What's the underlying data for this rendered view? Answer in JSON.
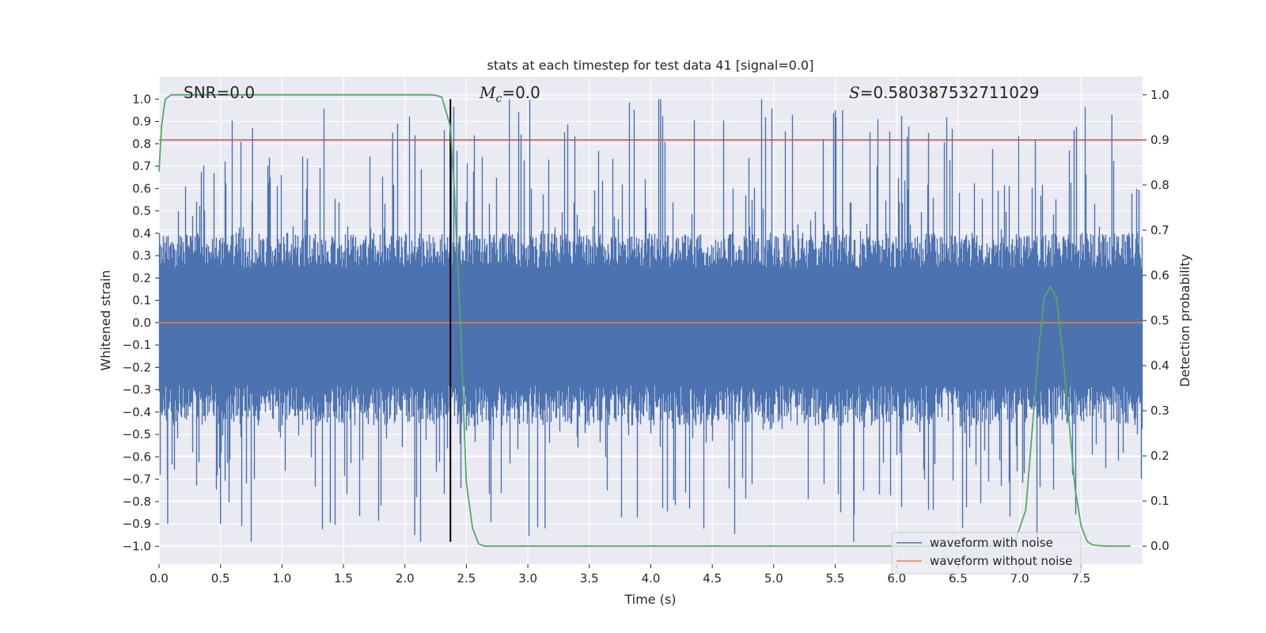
{
  "chart_data": {
    "type": "line",
    "title": "stats at each timestep for test data 41 [signal=0.0]",
    "xlabel": "Time (s)",
    "ylabel": "Whitened strain",
    "y2label": "Detection probability",
    "xlim": [
      0.0,
      8.0
    ],
    "ylim": [
      -1.08,
      1.1
    ],
    "y2lim": [
      -0.04,
      1.04
    ],
    "x_ticks": [
      0.0,
      0.5,
      1.0,
      1.5,
      2.0,
      2.5,
      3.0,
      3.5,
      4.0,
      4.5,
      5.0,
      5.5,
      6.0,
      6.5,
      7.0,
      7.5
    ],
    "x_tick_labels": [
      "0.0",
      "0.5",
      "1.0",
      "1.5",
      "2.0",
      "2.5",
      "3.0",
      "3.5",
      "4.0",
      "4.5",
      "5.0",
      "5.5",
      "6.0",
      "6.5",
      "7.0",
      "7.5"
    ],
    "y_ticks": [
      1.0,
      0.9,
      0.8,
      0.7,
      0.6,
      0.5,
      0.4,
      0.3,
      0.2,
      0.1,
      0.0,
      -0.1,
      -0.2,
      -0.3,
      -0.4,
      -0.5,
      -0.6,
      -0.7,
      -0.8,
      -0.9,
      -1.0
    ],
    "y_tick_labels": [
      "1.0",
      "0.9",
      "0.8",
      "0.7",
      "0.6",
      "0.5",
      "0.4",
      "0.3",
      "0.2",
      "0.1",
      "0.0",
      "−0.1",
      "−0.2",
      "−0.3",
      "−0.4",
      "−0.5",
      "−0.6",
      "−0.7",
      "−0.8",
      "−0.9",
      "−1.0"
    ],
    "y2_ticks": [
      1.0,
      0.9,
      0.8,
      0.7,
      0.6,
      0.5,
      0.4,
      0.3,
      0.2,
      0.1,
      0.0
    ],
    "y2_tick_labels": [
      "1.0",
      "0.9",
      "0.8",
      "0.7",
      "0.6",
      "0.5",
      "0.4",
      "0.3",
      "0.2",
      "0.1",
      "0.0"
    ],
    "noise_envelope": {
      "upper_typical": 0.35,
      "lower_typical": -0.4,
      "upper_peak_max": 1.0,
      "lower_peak_min": -0.98,
      "seed": 41
    },
    "series": [
      {
        "name": "waveform with noise",
        "color": "#4c72b0",
        "axis": "left"
      },
      {
        "name": "waveform without noise",
        "color": "#dd8452",
        "axis": "left",
        "x": [
          0.0,
          8.0
        ],
        "y": [
          0.0,
          0.0
        ]
      },
      {
        "name": "detection probability",
        "color": "#55a868",
        "axis": "right",
        "x": [
          0.0,
          0.02,
          0.05,
          0.1,
          0.15,
          0.5,
          1.0,
          1.5,
          2.0,
          2.1,
          2.2,
          2.25,
          2.3,
          2.37,
          2.4,
          2.45,
          2.5,
          2.55,
          2.6,
          2.65,
          3.0,
          4.0,
          5.0,
          6.0,
          6.5,
          6.95,
          7.05,
          7.1,
          7.15,
          7.2,
          7.25,
          7.3,
          7.35,
          7.4,
          7.45,
          7.5,
          7.55,
          7.6,
          7.7,
          7.9
        ],
        "y": [
          0.83,
          0.93,
          0.99,
          1.0,
          1.0,
          1.0,
          1.0,
          1.0,
          1.0,
          1.0,
          1.0,
          0.999,
          0.995,
          0.93,
          0.8,
          0.5,
          0.14,
          0.04,
          0.005,
          0.0,
          0.0,
          0.0,
          0.0,
          0.0,
          0.0,
          0.0,
          0.08,
          0.25,
          0.42,
          0.55,
          0.575,
          0.55,
          0.43,
          0.28,
          0.13,
          0.045,
          0.01,
          0.002,
          0.0,
          0.0
        ]
      }
    ],
    "threshold": {
      "axis": "right",
      "value": 0.9,
      "color": "#c44e52"
    },
    "marker_line": {
      "x": 2.37,
      "y_from": -0.98,
      "y_to": 1.0,
      "color": "#000000"
    },
    "annotations": {
      "snr": {
        "text": "SNR=0.0"
      },
      "mc": {
        "symbol": "M",
        "subscript": "c",
        "text": "=0.0"
      },
      "s": {
        "symbol": "S",
        "text": "=0.580387532711029"
      }
    },
    "legend": {
      "position": "lower-right",
      "entries": [
        {
          "label": "waveform with noise",
          "color": "#4c72b0"
        },
        {
          "label": "waveform without noise",
          "color": "#dd8452"
        }
      ]
    },
    "background": "#eaeaf2",
    "grid": true
  }
}
